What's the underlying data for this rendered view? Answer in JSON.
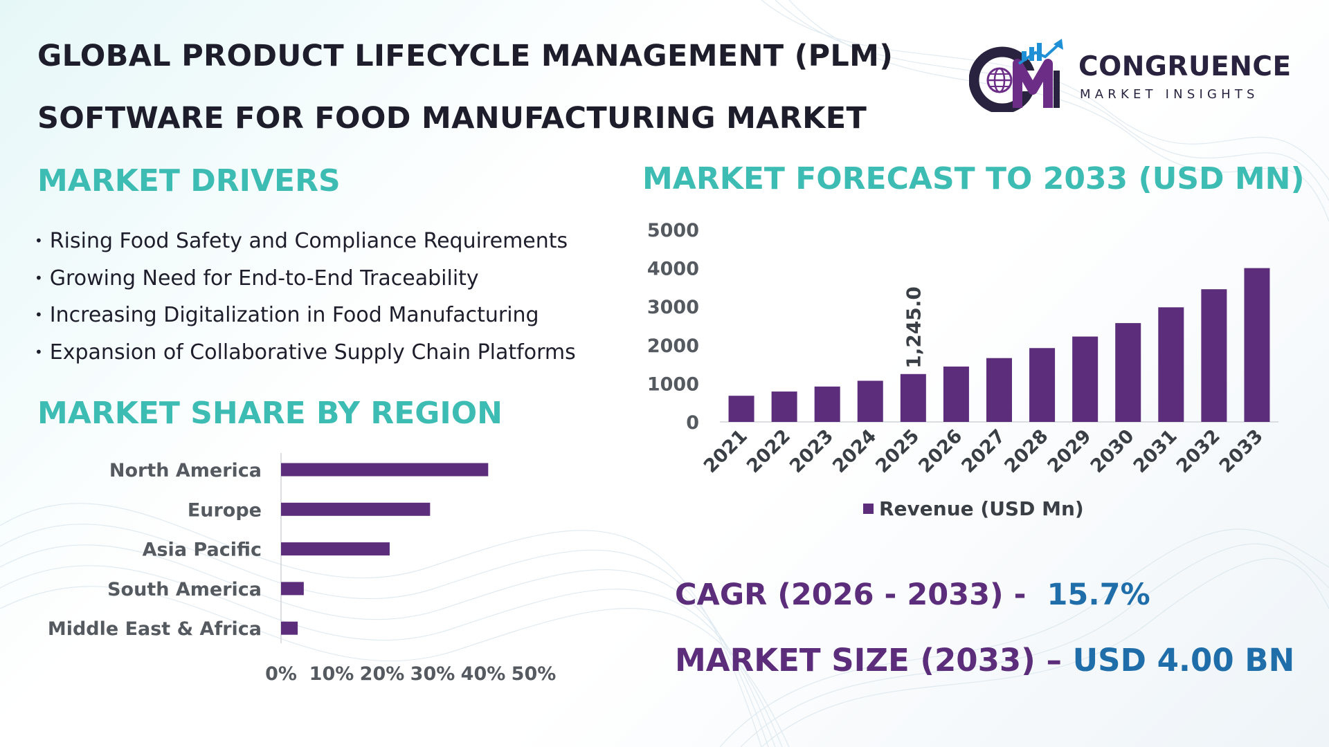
{
  "header": {
    "title_line1": "GLOBAL PRODUCT LIFECYCLE MANAGEMENT (PLM)",
    "title_line2": "SOFTWARE FOR FOOD MANUFACTURING MARKET"
  },
  "logo": {
    "name": "CONGRUENCE",
    "tagline": "MARKET INSIGHTS",
    "mark_letters": "CM",
    "colors": {
      "navy": "#2a2340",
      "purple": "#6b2d86",
      "blue": "#1f8fd6",
      "teal": "#3dbcb3"
    }
  },
  "drivers": {
    "heading": "MARKET DRIVERS",
    "items": [
      "Rising Food Safety and Compliance Requirements",
      "Growing Need for End-to-End Traceability",
      "Increasing Digitalization in Food Manufacturing",
      "Expansion of Collaborative Supply Chain Platforms"
    ]
  },
  "share": {
    "heading": "MARKET SHARE BY REGION"
  },
  "forecast": {
    "heading": "MARKET FORECAST TO 2033 (USD MN)"
  },
  "kpis": {
    "cagr_label": "CAGR (2026 - 2033) -",
    "cagr_value": "15.7%",
    "size_label": "MARKET SIZE (2033) –",
    "size_value": "USD 4.00 BN"
  },
  "colors": {
    "bar": "#5b2d7a",
    "heading_teal": "#3dbcb3",
    "title_dark": "#1d1d2b",
    "kpi_purple": "#5b2d7a",
    "kpi_blue": "#1f6eaa"
  },
  "chart_data": [
    {
      "type": "bar",
      "orientation": "horizontal",
      "categories": [
        "North America",
        "Europe",
        "Asia Pacific",
        "South America",
        "Middle East & Africa"
      ],
      "values": [
        41,
        29.5,
        21.5,
        4.5,
        3.3
      ],
      "xtick_labels": [
        "0%",
        "10%",
        "20%",
        "30%",
        "40%",
        "50%"
      ],
      "xlim": [
        0,
        50
      ],
      "grid": false,
      "legend": "none"
    },
    {
      "type": "bar",
      "categories": [
        "2021",
        "2022",
        "2023",
        "2024",
        "2025",
        "2026",
        "2027",
        "2028",
        "2029",
        "2030",
        "2031",
        "2032",
        "2033"
      ],
      "series": [
        {
          "name": "Revenue (USD Mn)",
          "values": [
            680,
            790,
            920,
            1070,
            1245.0,
            1440,
            1660,
            1920,
            2220,
            2570,
            2980,
            3450,
            4000
          ]
        }
      ],
      "data_labels": [
        {
          "category": "2025",
          "text": "1,245.0"
        }
      ],
      "ytick_labels": [
        "0",
        "1000",
        "2000",
        "3000",
        "4000",
        "5000"
      ],
      "ylim": [
        0,
        5000
      ],
      "grid": false,
      "legend": "bottom"
    }
  ]
}
